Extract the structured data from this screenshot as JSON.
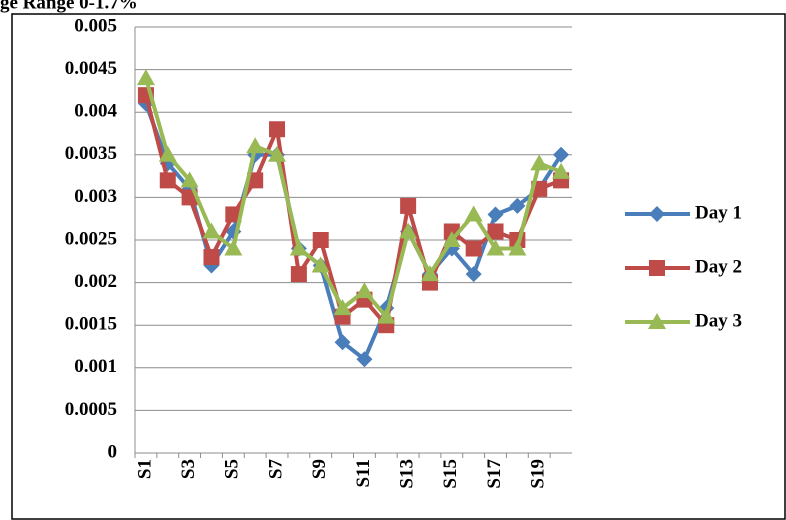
{
  "chart_data": {
    "type": "line",
    "title": "ge Range 0-1.7%",
    "categories": [
      "S1",
      null,
      "S3",
      null,
      "S5",
      null,
      "S7",
      null,
      "S9",
      null,
      "S11",
      null,
      "S13",
      null,
      "S15",
      null,
      "S17",
      null,
      "S19",
      null
    ],
    "series": [
      {
        "name": "Day 1",
        "color": "#4a7ebb",
        "marker": "diamond",
        "values": [
          0.0041,
          0.0034,
          0.0031,
          0.0022,
          0.0026,
          0.0035,
          0.0035,
          0.0024,
          0.0022,
          0.0013,
          0.0011,
          0.0017,
          0.0026,
          0.0021,
          0.0024,
          0.0021,
          0.0028,
          0.0029,
          0.0031,
          0.0035
        ]
      },
      {
        "name": "Day 2",
        "color": "#be4b48",
        "marker": "square",
        "values": [
          0.0042,
          0.0032,
          0.003,
          0.0023,
          0.0028,
          0.0032,
          0.0038,
          0.0021,
          0.0025,
          0.0016,
          0.0018,
          0.0015,
          0.0029,
          0.002,
          0.0026,
          0.0024,
          0.0026,
          0.0025,
          0.0031,
          0.0032
        ]
      },
      {
        "name": "Day 3",
        "color": "#98b954",
        "marker": "triangle",
        "values": [
          0.0044,
          0.0035,
          0.0032,
          0.0026,
          0.0024,
          0.0036,
          0.0035,
          0.0024,
          0.0022,
          0.0017,
          0.0019,
          0.0016,
          0.0026,
          0.0021,
          0.0025,
          0.0028,
          0.0024,
          0.0024,
          0.0034,
          0.0033
        ]
      }
    ],
    "ylim": [
      0,
      0.005
    ],
    "yticks": [
      0,
      0.0005,
      0.001,
      0.0015,
      0.002,
      0.0025,
      0.003,
      0.0035,
      0.004,
      0.0045,
      0.005
    ],
    "grid": true,
    "legend": "right"
  }
}
